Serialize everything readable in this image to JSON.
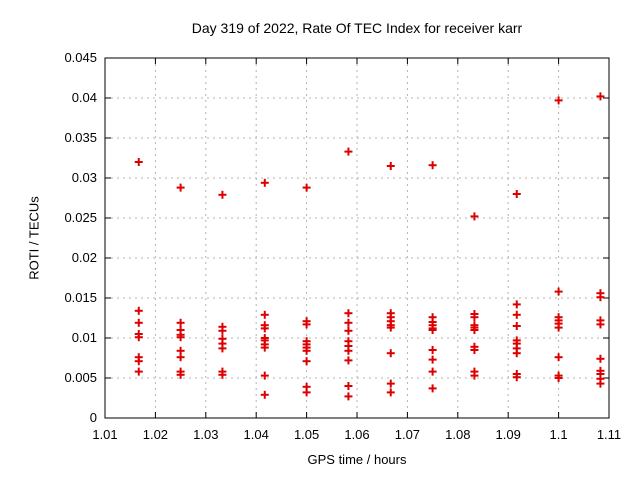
{
  "chart_data": {
    "type": "scatter",
    "title": "Day 319 of 2022, Rate Of TEC Index for receiver karr",
    "xlabel": "GPS time / hours",
    "ylabel": "ROTI / TECUs",
    "xlim": [
      1.01,
      1.11
    ],
    "ylim": [
      0,
      0.045
    ],
    "grid": true,
    "legend": "none",
    "background_color": "#ffffff",
    "frame_color": "#000000",
    "grid_color": "#b3b3b3",
    "xticks": [
      {
        "v": 1.01,
        "label": "1.01"
      },
      {
        "v": 1.02,
        "label": "1.02"
      },
      {
        "v": 1.03,
        "label": "1.03"
      },
      {
        "v": 1.04,
        "label": "1.04"
      },
      {
        "v": 1.05,
        "label": "1.05"
      },
      {
        "v": 1.06,
        "label": "1.06"
      },
      {
        "v": 1.07,
        "label": "1.07"
      },
      {
        "v": 1.08,
        "label": "1.08"
      },
      {
        "v": 1.09,
        "label": "1.09"
      },
      {
        "v": 1.1,
        "label": "1.1"
      },
      {
        "v": 1.11,
        "label": "1.11"
      }
    ],
    "yticks": [
      {
        "v": 0,
        "label": "0"
      },
      {
        "v": 0.005,
        "label": "0.005"
      },
      {
        "v": 0.01,
        "label": "0.01"
      },
      {
        "v": 0.015,
        "label": "0.015"
      },
      {
        "v": 0.02,
        "label": "0.02"
      },
      {
        "v": 0.025,
        "label": "0.025"
      },
      {
        "v": 0.03,
        "label": "0.03"
      },
      {
        "v": 0.035,
        "label": "0.035"
      },
      {
        "v": 0.04,
        "label": "0.04"
      },
      {
        "v": 0.045,
        "label": "0.045"
      }
    ],
    "series": [
      {
        "name": "ROTI",
        "marker": "plus",
        "color": "#dd0000",
        "epochs": [
          {
            "x": 1.0167,
            "y": [
              0.032,
              0.0134,
              0.0119,
              0.0105,
              0.0101,
              0.0076,
              0.0071,
              0.0058
            ]
          },
          {
            "x": 1.025,
            "y": [
              0.0288,
              0.0119,
              0.011,
              0.0104,
              0.0101,
              0.0084,
              0.0076,
              0.0058,
              0.0054
            ]
          },
          {
            "x": 1.0333,
            "y": [
              0.0279,
              0.0114,
              0.0109,
              0.0099,
              0.0093,
              0.0087,
              0.0058,
              0.0054
            ]
          },
          {
            "x": 1.0417,
            "y": [
              0.0294,
              0.0129,
              0.0116,
              0.0112,
              0.01,
              0.0097,
              0.0092,
              0.0088,
              0.0053,
              0.0029
            ]
          },
          {
            "x": 1.05,
            "y": [
              0.0288,
              0.0121,
              0.0117,
              0.0096,
              0.0092,
              0.0088,
              0.0084,
              0.0071,
              0.0039,
              0.0032
            ]
          },
          {
            "x": 1.0583,
            "y": [
              0.0333,
              0.0131,
              0.0119,
              0.0109,
              0.0096,
              0.009,
              0.0084,
              0.0072,
              0.004,
              0.0027
            ]
          },
          {
            "x": 1.0667,
            "y": [
              0.0315,
              0.0131,
              0.0126,
              0.0121,
              0.0116,
              0.0113,
              0.0081,
              0.0043,
              0.0032
            ]
          },
          {
            "x": 1.075,
            "y": [
              0.0316,
              0.0126,
              0.012,
              0.0116,
              0.0112,
              0.011,
              0.0085,
              0.0073,
              0.0058,
              0.0037
            ]
          },
          {
            "x": 1.0833,
            "y": [
              0.0252,
              0.013,
              0.0126,
              0.0116,
              0.0113,
              0.011,
              0.0089,
              0.0085,
              0.0058,
              0.0053
            ]
          },
          {
            "x": 1.0917,
            "y": [
              0.028,
              0.0142,
              0.0129,
              0.0115,
              0.0097,
              0.0093,
              0.0087,
              0.0081,
              0.0055,
              0.0051
            ]
          },
          {
            "x": 1.1,
            "y": [
              0.0397,
              0.0158,
              0.0126,
              0.0122,
              0.0118,
              0.0113,
              0.0076,
              0.0053,
              0.005
            ]
          },
          {
            "x": 1.1083,
            "y": [
              0.0402,
              0.0156,
              0.0151,
              0.0122,
              0.0117,
              0.0074,
              0.0059,
              0.0055,
              0.0049,
              0.0043
            ]
          }
        ]
      }
    ]
  }
}
